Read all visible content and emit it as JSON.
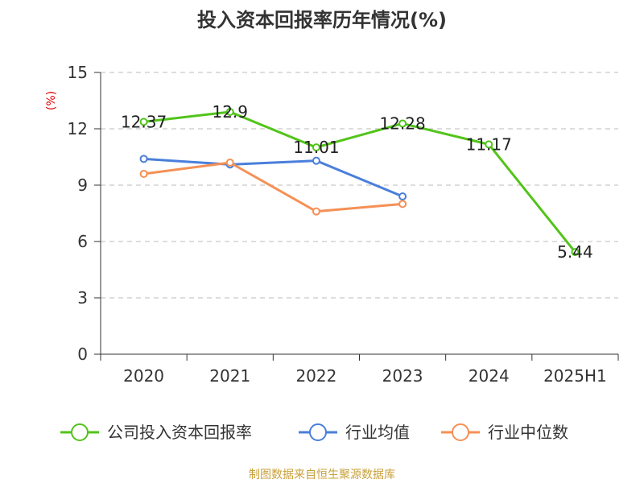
{
  "chart_data": {
    "type": "line",
    "title": "投入资本回报率历年情况(%)",
    "ylabel": "(%)",
    "xlabel": "",
    "ylim": [
      0,
      15
    ],
    "yticks": [
      0,
      3,
      6,
      9,
      12,
      15
    ],
    "categories": [
      "2020",
      "2021",
      "2022",
      "2023",
      "2024",
      "2025H1"
    ],
    "grid": true,
    "legend_position": "bottom",
    "series": [
      {
        "name": "公司投入资本回报率",
        "color": "#52c41a",
        "values": [
          12.37,
          12.9,
          11.01,
          12.28,
          11.17,
          5.44
        ],
        "labels": [
          "12.37",
          "12.9",
          "11.01",
          "12.28",
          "11.17",
          "5.44"
        ]
      },
      {
        "name": "行业均值",
        "color": "#4a7fdb",
        "values": [
          10.4,
          10.1,
          10.3,
          8.4,
          null,
          null
        ]
      },
      {
        "name": "行业中位数",
        "color": "#f59055",
        "values": [
          9.6,
          10.2,
          7.6,
          8.0,
          null,
          null
        ]
      }
    ]
  },
  "source": "制图数据来自恒生聚源数据库"
}
